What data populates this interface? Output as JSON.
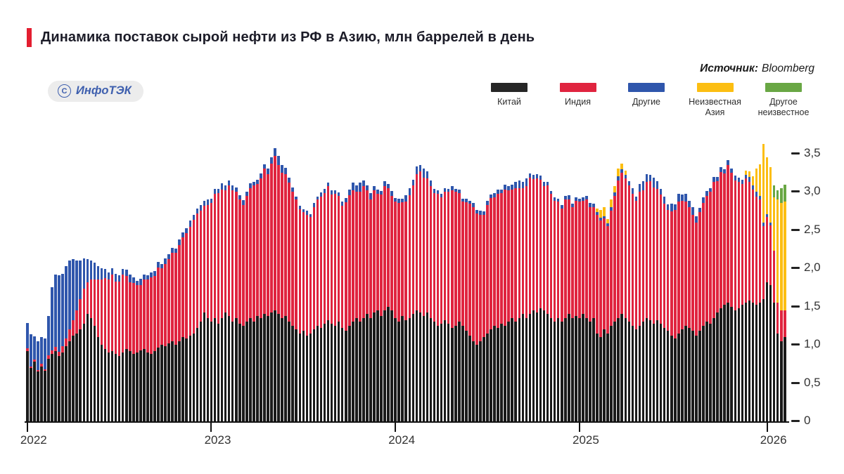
{
  "header": {
    "title": "Динамика поставок сырой нефти из РФ в Азию, млн баррелей в день",
    "source_label": "Источник:",
    "source_value": "Bloomberg",
    "logo_symbol": "С",
    "logo_text": "ИнфоТЭК",
    "accent_color": "#e31e30"
  },
  "legend": {
    "items": [
      {
        "label": "Китай",
        "color": "#262626"
      },
      {
        "label": "Индия",
        "color": "#e0243f"
      },
      {
        "label": "Другие",
        "color": "#2f56ac"
      },
      {
        "label": "Неизвестная\nАзия",
        "color": "#fcbe12"
      },
      {
        "label": "Другое\nнеизвестное",
        "color": "#69a744"
      }
    ]
  },
  "chart_data": {
    "type": "bar",
    "stacked": true,
    "title": "Динамика поставок сырой нефти из РФ в Азию",
    "ylabel": "млн баррелей в день",
    "ylim": [
      0,
      3.5
    ],
    "grid": false,
    "legend_position": "top-right",
    "y_ticks": [
      {
        "v": 0.0,
        "label": "0"
      },
      {
        "v": 0.5,
        "label": "0,5"
      },
      {
        "v": 1.0,
        "label": "1,0"
      },
      {
        "v": 1.5,
        "label": "1,5"
      },
      {
        "v": 2.0,
        "label": "2,0"
      },
      {
        "v": 2.5,
        "label": "2,5"
      },
      {
        "v": 3.0,
        "label": "3,0"
      },
      {
        "v": 3.5,
        "label": "3,5"
      }
    ],
    "x_ticks": [
      {
        "label": "2022",
        "index": 0
      },
      {
        "label": "2023",
        "index": 52
      },
      {
        "label": "2024",
        "index": 104
      },
      {
        "label": "2025",
        "index": 156
      },
      {
        "label": "2026",
        "index": 209
      }
    ],
    "series_names": [
      "Китай",
      "Индия",
      "Другие",
      "Неизвестная Азия",
      "Другое неизвестное"
    ],
    "series_colors": [
      "#1a1a1a",
      "#e0243f",
      "#2f56ac",
      "#fcbe12",
      "#69a744"
    ],
    "weeks_format": [
      "china",
      "india",
      "others",
      "unknown_asia",
      "other_unknown"
    ],
    "weeks": [
      [
        0.92,
        0.03,
        0.33,
        0,
        0
      ],
      [
        0.7,
        0.02,
        0.42,
        0,
        0
      ],
      [
        0.78,
        0.03,
        0.3,
        0,
        0
      ],
      [
        0.65,
        0.02,
        0.38,
        0,
        0
      ],
      [
        0.72,
        0.03,
        0.35,
        0,
        0
      ],
      [
        0.66,
        0.02,
        0.4,
        0,
        0
      ],
      [
        0.82,
        0.04,
        0.52,
        0,
        0
      ],
      [
        0.88,
        0.05,
        0.82,
        0,
        0
      ],
      [
        0.92,
        0.05,
        0.95,
        0,
        0
      ],
      [
        0.85,
        0.06,
        1.0,
        0,
        0
      ],
      [
        0.9,
        0.08,
        0.95,
        0,
        0
      ],
      [
        0.98,
        0.1,
        0.95,
        0,
        0
      ],
      [
        1.05,
        0.15,
        0.9,
        0,
        0
      ],
      [
        1.12,
        0.2,
        0.8,
        0,
        0
      ],
      [
        1.15,
        0.3,
        0.65,
        0,
        0
      ],
      [
        1.2,
        0.4,
        0.5,
        0,
        0
      ],
      [
        1.28,
        0.45,
        0.4,
        0,
        0
      ],
      [
        1.4,
        0.42,
        0.3,
        0,
        0
      ],
      [
        1.35,
        0.5,
        0.25,
        0,
        0
      ],
      [
        1.25,
        0.6,
        0.22,
        0,
        0
      ],
      [
        1.1,
        0.75,
        0.18,
        0,
        0
      ],
      [
        1.0,
        0.85,
        0.15,
        0,
        0
      ],
      [
        0.95,
        0.92,
        0.12,
        0,
        0
      ],
      [
        0.9,
        0.95,
        0.1,
        0,
        0
      ],
      [
        0.92,
        1.0,
        0.08,
        0,
        0
      ],
      [
        0.88,
        0.95,
        0.1,
        0,
        0
      ],
      [
        0.85,
        0.98,
        0.08,
        0,
        0
      ],
      [
        0.9,
        1.02,
        0.07,
        0,
        0
      ],
      [
        0.95,
        0.95,
        0.08,
        0,
        0
      ],
      [
        0.92,
        0.9,
        0.1,
        0,
        0
      ],
      [
        0.88,
        0.93,
        0.07,
        0,
        0
      ],
      [
        0.9,
        0.88,
        0.06,
        0,
        0
      ],
      [
        0.93,
        0.85,
        0.08,
        0,
        0
      ],
      [
        0.95,
        0.9,
        0.07,
        0,
        0
      ],
      [
        0.9,
        0.95,
        0.06,
        0,
        0
      ],
      [
        0.88,
        1.0,
        0.07,
        0,
        0
      ],
      [
        0.92,
        0.98,
        0.06,
        0,
        0
      ],
      [
        0.96,
        1.05,
        0.07,
        0,
        0
      ],
      [
        1.0,
        1.0,
        0.06,
        0,
        0
      ],
      [
        0.98,
        1.08,
        0.07,
        0,
        0
      ],
      [
        1.02,
        1.1,
        0.06,
        0,
        0
      ],
      [
        1.05,
        1.15,
        0.07,
        0,
        0
      ],
      [
        1.0,
        1.2,
        0.06,
        0,
        0
      ],
      [
        1.05,
        1.25,
        0.08,
        0,
        0
      ],
      [
        1.1,
        1.3,
        0.07,
        0,
        0
      ],
      [
        1.08,
        1.38,
        0.06,
        0,
        0
      ],
      [
        1.12,
        1.42,
        0.08,
        0,
        0
      ],
      [
        1.15,
        1.48,
        0.07,
        0,
        0
      ],
      [
        1.22,
        1.5,
        0.06,
        0,
        0
      ],
      [
        1.3,
        1.45,
        0.08,
        0,
        0
      ],
      [
        1.42,
        1.4,
        0.06,
        0,
        0
      ],
      [
        1.35,
        1.48,
        0.07,
        0,
        0
      ],
      [
        1.3,
        1.55,
        0.06,
        0,
        0
      ],
      [
        1.35,
        1.62,
        0.07,
        0,
        0
      ],
      [
        1.28,
        1.7,
        0.06,
        0,
        0
      ],
      [
        1.35,
        1.68,
        0.08,
        0,
        0
      ],
      [
        1.42,
        1.6,
        0.06,
        0,
        0
      ],
      [
        1.38,
        1.7,
        0.07,
        0,
        0
      ],
      [
        1.3,
        1.72,
        0.06,
        0,
        0
      ],
      [
        1.35,
        1.65,
        0.06,
        0,
        0
      ],
      [
        1.28,
        1.62,
        0.05,
        0,
        0
      ],
      [
        1.25,
        1.58,
        0.06,
        0,
        0
      ],
      [
        1.3,
        1.65,
        0.05,
        0,
        0
      ],
      [
        1.35,
        1.7,
        0.06,
        0,
        0
      ],
      [
        1.3,
        1.78,
        0.05,
        0,
        0
      ],
      [
        1.38,
        1.72,
        0.06,
        0,
        0
      ],
      [
        1.35,
        1.82,
        0.07,
        0,
        0
      ],
      [
        1.4,
        1.9,
        0.06,
        0,
        0
      ],
      [
        1.38,
        1.85,
        0.07,
        0,
        0
      ],
      [
        1.42,
        1.95,
        0.08,
        0,
        0
      ],
      [
        1.45,
        2.02,
        0.1,
        0,
        0
      ],
      [
        1.4,
        1.95,
        0.12,
        0,
        0
      ],
      [
        1.35,
        1.9,
        0.1,
        0,
        0
      ],
      [
        1.38,
        1.85,
        0.08,
        0,
        0
      ],
      [
        1.3,
        1.82,
        0.06,
        0,
        0
      ],
      [
        1.25,
        1.75,
        0.05,
        0,
        0
      ],
      [
        1.2,
        1.7,
        0.04,
        0,
        0
      ],
      [
        1.15,
        1.62,
        0.05,
        0,
        0
      ],
      [
        1.18,
        1.55,
        0.04,
        0,
        0
      ],
      [
        1.12,
        1.58,
        0.05,
        0,
        0
      ],
      [
        1.15,
        1.52,
        0.04,
        0,
        0
      ],
      [
        1.2,
        1.6,
        0.05,
        0,
        0
      ],
      [
        1.25,
        1.65,
        0.04,
        0,
        0
      ],
      [
        1.22,
        1.72,
        0.05,
        0,
        0
      ],
      [
        1.28,
        1.7,
        0.06,
        0,
        0
      ],
      [
        1.32,
        1.75,
        0.05,
        0,
        0
      ],
      [
        1.28,
        1.68,
        0.06,
        0,
        0
      ],
      [
        1.25,
        1.72,
        0.05,
        0,
        0
      ],
      [
        1.3,
        1.65,
        0.04,
        0,
        0
      ],
      [
        1.22,
        1.6,
        0.05,
        0,
        0
      ],
      [
        1.18,
        1.68,
        0.06,
        0,
        0
      ],
      [
        1.25,
        1.7,
        0.08,
        0,
        0
      ],
      [
        1.3,
        1.72,
        0.1,
        0,
        0
      ],
      [
        1.35,
        1.65,
        0.08,
        0,
        0
      ],
      [
        1.3,
        1.7,
        0.12,
        0,
        0
      ],
      [
        1.35,
        1.72,
        0.08,
        0,
        0
      ],
      [
        1.4,
        1.62,
        0.06,
        0,
        0
      ],
      [
        1.35,
        1.55,
        0.08,
        0,
        0
      ],
      [
        1.42,
        1.6,
        0.05,
        0,
        0
      ],
      [
        1.45,
        1.52,
        0.06,
        0,
        0
      ],
      [
        1.38,
        1.58,
        0.05,
        0,
        0
      ],
      [
        1.45,
        1.62,
        0.07,
        0,
        0
      ],
      [
        1.5,
        1.55,
        0.05,
        0,
        0
      ],
      [
        1.45,
        1.5,
        0.06,
        0,
        0
      ],
      [
        1.35,
        1.52,
        0.05,
        0,
        0
      ],
      [
        1.3,
        1.55,
        0.06,
        0,
        0
      ],
      [
        1.38,
        1.48,
        0.05,
        0,
        0
      ],
      [
        1.32,
        1.55,
        0.08,
        0,
        0
      ],
      [
        1.35,
        1.6,
        0.1,
        0,
        0
      ],
      [
        1.4,
        1.68,
        0.08,
        0,
        0
      ],
      [
        1.45,
        1.78,
        0.1,
        0,
        0
      ],
      [
        1.42,
        1.85,
        0.08,
        0,
        0
      ],
      [
        1.38,
        1.8,
        0.12,
        0,
        0
      ],
      [
        1.42,
        1.75,
        0.1,
        0,
        0
      ],
      [
        1.35,
        1.72,
        0.08,
        0,
        0
      ],
      [
        1.3,
        1.68,
        0.06,
        0,
        0
      ],
      [
        1.25,
        1.72,
        0.05,
        0,
        0
      ],
      [
        1.28,
        1.65,
        0.04,
        0,
        0
      ],
      [
        1.32,
        1.68,
        0.05,
        0,
        0
      ],
      [
        1.28,
        1.72,
        0.04,
        0,
        0
      ],
      [
        1.22,
        1.8,
        0.05,
        0,
        0
      ],
      [
        1.25,
        1.75,
        0.04,
        0,
        0
      ],
      [
        1.3,
        1.68,
        0.05,
        0,
        0
      ],
      [
        1.25,
        1.62,
        0.04,
        0,
        0
      ],
      [
        1.18,
        1.68,
        0.05,
        0,
        0
      ],
      [
        1.12,
        1.72,
        0.04,
        0,
        0
      ],
      [
        1.05,
        1.75,
        0.05,
        0,
        0
      ],
      [
        1.0,
        1.72,
        0.04,
        0,
        0
      ],
      [
        1.05,
        1.65,
        0.05,
        0,
        0
      ],
      [
        1.1,
        1.6,
        0.04,
        0,
        0
      ],
      [
        1.15,
        1.68,
        0.05,
        0,
        0
      ],
      [
        1.2,
        1.72,
        0.04,
        0,
        0
      ],
      [
        1.25,
        1.68,
        0.05,
        0,
        0
      ],
      [
        1.22,
        1.75,
        0.06,
        0,
        0
      ],
      [
        1.28,
        1.7,
        0.05,
        0,
        0
      ],
      [
        1.25,
        1.78,
        0.06,
        0,
        0
      ],
      [
        1.3,
        1.72,
        0.05,
        0,
        0
      ],
      [
        1.35,
        1.68,
        0.06,
        0,
        0
      ],
      [
        1.3,
        1.75,
        0.08,
        0,
        0
      ],
      [
        1.35,
        1.7,
        0.1,
        0,
        0
      ],
      [
        1.4,
        1.65,
        0.08,
        0,
        0
      ],
      [
        1.35,
        1.72,
        0.1,
        0,
        0
      ],
      [
        1.4,
        1.78,
        0.06,
        0,
        0
      ],
      [
        1.45,
        1.72,
        0.05,
        0,
        0
      ],
      [
        1.42,
        1.75,
        0.06,
        0,
        0
      ],
      [
        1.48,
        1.68,
        0.05,
        0,
        0
      ],
      [
        1.45,
        1.62,
        0.06,
        0,
        0
      ],
      [
        1.4,
        1.68,
        0.05,
        0,
        0
      ],
      [
        1.35,
        1.62,
        0.04,
        0,
        0
      ],
      [
        1.3,
        1.58,
        0.05,
        0,
        0
      ],
      [
        1.35,
        1.52,
        0.04,
        0,
        0
      ],
      [
        1.3,
        1.48,
        0.05,
        0,
        0
      ],
      [
        1.35,
        1.55,
        0.04,
        0,
        0
      ],
      [
        1.4,
        1.5,
        0.05,
        0,
        0
      ],
      [
        1.35,
        1.45,
        0.04,
        0,
        0
      ],
      [
        1.38,
        1.5,
        0.05,
        0,
        0
      ],
      [
        1.35,
        1.52,
        0.04,
        0,
        0
      ],
      [
        1.4,
        1.48,
        0.05,
        0,
        0
      ],
      [
        1.35,
        1.55,
        0.04,
        0,
        0
      ],
      [
        1.3,
        1.5,
        0.05,
        0,
        0
      ],
      [
        1.35,
        1.45,
        0.04,
        0,
        0
      ],
      [
        1.15,
        1.55,
        0.03,
        0.05,
        0
      ],
      [
        1.1,
        1.52,
        0.04,
        0.1,
        0
      ],
      [
        1.2,
        1.45,
        0.03,
        0.12,
        0
      ],
      [
        1.15,
        1.4,
        0.04,
        0.05,
        0
      ],
      [
        1.25,
        1.5,
        0.05,
        0.1,
        0
      ],
      [
        1.3,
        1.65,
        0.04,
        0.08,
        0
      ],
      [
        1.35,
        1.8,
        0.05,
        0.1,
        0
      ],
      [
        1.4,
        1.85,
        0.04,
        0.08,
        0
      ],
      [
        1.35,
        1.82,
        0.05,
        0.05,
        0
      ],
      [
        1.3,
        1.78,
        0.06,
        0,
        0
      ],
      [
        1.25,
        1.72,
        0.08,
        0,
        0
      ],
      [
        1.2,
        1.68,
        0.06,
        0,
        0
      ],
      [
        1.25,
        1.75,
        0.1,
        0,
        0
      ],
      [
        1.3,
        1.72,
        0.12,
        0,
        0
      ],
      [
        1.35,
        1.78,
        0.1,
        0,
        0
      ],
      [
        1.32,
        1.82,
        0.08,
        0,
        0
      ],
      [
        1.28,
        1.78,
        0.12,
        0,
        0
      ],
      [
        1.32,
        1.72,
        0.1,
        0,
        0
      ],
      [
        1.28,
        1.68,
        0.08,
        0,
        0
      ],
      [
        1.22,
        1.62,
        0.1,
        0,
        0
      ],
      [
        1.18,
        1.58,
        0.08,
        0,
        0
      ],
      [
        1.12,
        1.62,
        0.1,
        0,
        0
      ],
      [
        1.08,
        1.68,
        0.08,
        0,
        0
      ],
      [
        1.15,
        1.72,
        0.1,
        0,
        0
      ],
      [
        1.2,
        1.68,
        0.08,
        0,
        0
      ],
      [
        1.25,
        1.62,
        0.1,
        0,
        0
      ],
      [
        1.22,
        1.58,
        0.08,
        0,
        0
      ],
      [
        1.18,
        1.52,
        0.1,
        0,
        0
      ],
      [
        1.12,
        1.48,
        0.08,
        0,
        0
      ],
      [
        1.18,
        1.55,
        0.06,
        0,
        0
      ],
      [
        1.25,
        1.6,
        0.08,
        0,
        0
      ],
      [
        1.3,
        1.65,
        0.06,
        0,
        0
      ],
      [
        1.28,
        1.72,
        0.05,
        0,
        0
      ],
      [
        1.35,
        1.78,
        0.06,
        0,
        0
      ],
      [
        1.42,
        1.72,
        0.05,
        0,
        0
      ],
      [
        1.48,
        1.78,
        0.06,
        0,
        0
      ],
      [
        1.52,
        1.72,
        0.05,
        0,
        0
      ],
      [
        1.55,
        1.8,
        0.06,
        0,
        0
      ],
      [
        1.5,
        1.75,
        0.05,
        0,
        0
      ],
      [
        1.45,
        1.7,
        0.06,
        0,
        0
      ],
      [
        1.48,
        1.65,
        0.05,
        0,
        0
      ],
      [
        1.52,
        1.58,
        0.06,
        0,
        0
      ],
      [
        1.55,
        1.62,
        0.05,
        0.05,
        0
      ],
      [
        1.58,
        1.55,
        0.06,
        0.08,
        0
      ],
      [
        1.55,
        1.48,
        0.05,
        0.12,
        0
      ],
      [
        1.52,
        1.42,
        0.06,
        0.3,
        0
      ],
      [
        1.55,
        1.35,
        0.04,
        0.42,
        0
      ],
      [
        1.6,
        0.95,
        0.05,
        1.02,
        0
      ],
      [
        1.82,
        0.85,
        0.04,
        0.74,
        0
      ],
      [
        1.78,
        0.78,
        0.04,
        0.72,
        0
      ],
      [
        1.55,
        0.68,
        0,
        0.7,
        0.15
      ],
      [
        1.15,
        0.4,
        0,
        1.35,
        0.12
      ],
      [
        1.05,
        0.4,
        0,
        1.4,
        0.2
      ],
      [
        1.1,
        0.35,
        0,
        1.42,
        0.22
      ]
    ]
  }
}
